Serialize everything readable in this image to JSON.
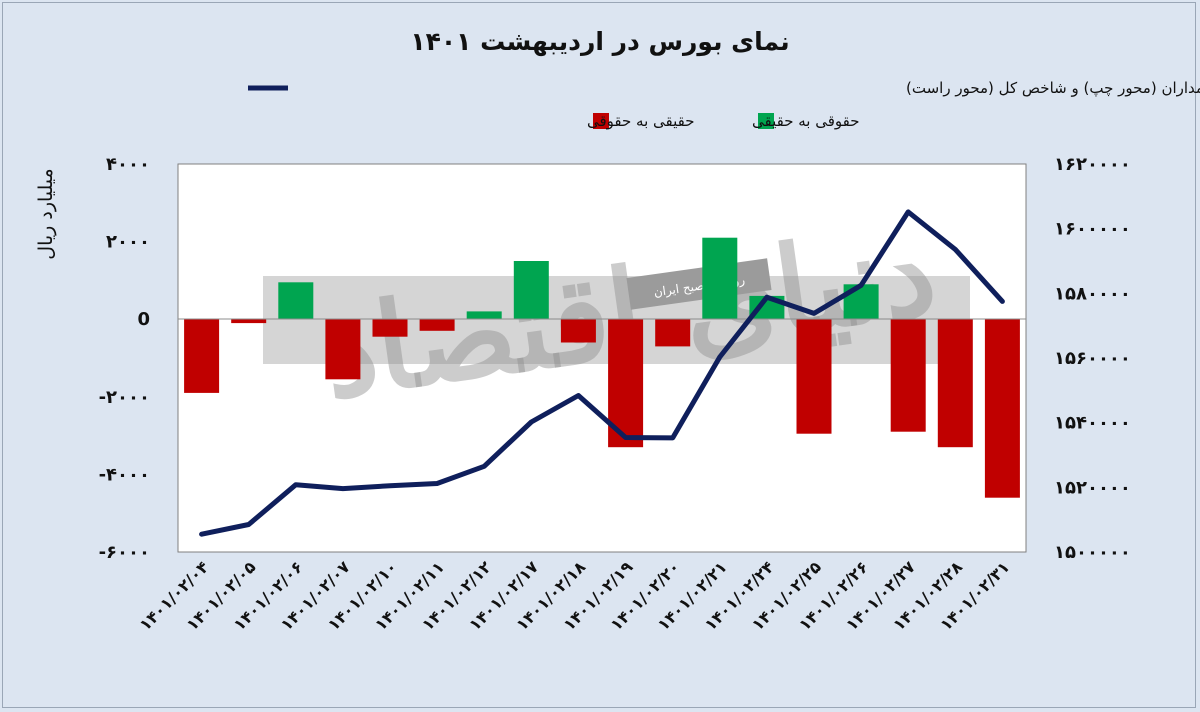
{
  "chart_data": {
    "type": "bar",
    "title": "نمای بورس در اردیبهشت ۱۴۰۱",
    "ylabel": "میلیارد ریال",
    "xlabel": "",
    "categories": [
      "۱۴۰۱/۰۲/۰۴",
      "۱۴۰۱/۰۲/۰۵",
      "۱۴۰۱/۰۲/۰۶",
      "۱۴۰۱/۰۲/۰۷",
      "۱۴۰۱/۰۲/۱۰",
      "۱۴۰۱/۰۲/۱۱",
      "۱۴۰۱/۰۲/۱۲",
      "۱۴۰۱/۰۲/۱۷",
      "۱۴۰۱/۰۲/۱۸",
      "۱۴۰۱/۰۲/۱۹",
      "۱۴۰۱/۰۲/۲۰",
      "۱۴۰۱/۰۲/۲۱",
      "۱۴۰۱/۰۲/۲۴",
      "۱۴۰۱/۰۲/۲۵",
      "۱۴۰۱/۰۲/۲۶",
      "۱۴۰۱/۰۲/۲۷",
      "۱۴۰۱/۰۲/۲۸",
      "۱۴۰۱/۰۲/۳۱"
    ],
    "y_left_range": [
      -6000,
      4000
    ],
    "y_right_range": [
      1500000,
      1620000
    ],
    "y_left_ticks": [
      {
        "value": 4000,
        "label": "۴۰۰۰"
      },
      {
        "value": 2000,
        "label": "۲۰۰۰"
      },
      {
        "value": 0,
        "label": "0"
      },
      {
        "value": -2000,
        "label": "-۲۰۰۰"
      },
      {
        "value": -4000,
        "label": "-۴۰۰۰"
      },
      {
        "value": -6000,
        "label": "-۶۰۰۰"
      }
    ],
    "y_right_ticks": [
      {
        "value": 1620000,
        "label": "۱۶۲۰۰۰۰"
      },
      {
        "value": 1600000,
        "label": "۱۶۰۰۰۰۰"
      },
      {
        "value": 1580000,
        "label": "۱۵۸۰۰۰۰"
      },
      {
        "value": 1560000,
        "label": "۱۵۶۰۰۰۰"
      },
      {
        "value": 1540000,
        "label": "۱۵۴۰۰۰۰"
      },
      {
        "value": 1520000,
        "label": "۱۵۲۰۰۰۰"
      },
      {
        "value": 1500000,
        "label": "۱۵۰۰۰۰۰"
      }
    ],
    "bars": {
      "values": [
        -1900,
        -100,
        950,
        -1550,
        -450,
        -300,
        200,
        1500,
        -600,
        -3300,
        -700,
        2100,
        600,
        -2950,
        900,
        -2900,
        -3300,
        -4600
      ]
    },
    "series": [
      {
        "name": "تغییر مالکیت میان سهامداران (محور چپ) و شاخص کل (محور راست)",
        "axis": "right",
        "color": "#0f1f5c",
        "values": [
          1505500,
          1508500,
          1520800,
          1519600,
          1520500,
          1521200,
          1526500,
          1540200,
          1548400,
          1535400,
          1535300,
          1560300,
          1578800,
          1573800,
          1582500,
          1605200,
          1593600,
          1577500
        ]
      }
    ],
    "legend": [
      {
        "name": "حقیقی به حقوقی",
        "color": "#c00000"
      },
      {
        "name": "حقوقی به حقیقی",
        "color": "#00a550"
      }
    ],
    "colors": {
      "positive": "#00a550",
      "negative": "#c00000",
      "line": "#0f1f5c"
    },
    "grid": false
  },
  "watermark": {
    "main": "دنیای اقتصاد",
    "sub": "روزنامه صبح ایران"
  }
}
